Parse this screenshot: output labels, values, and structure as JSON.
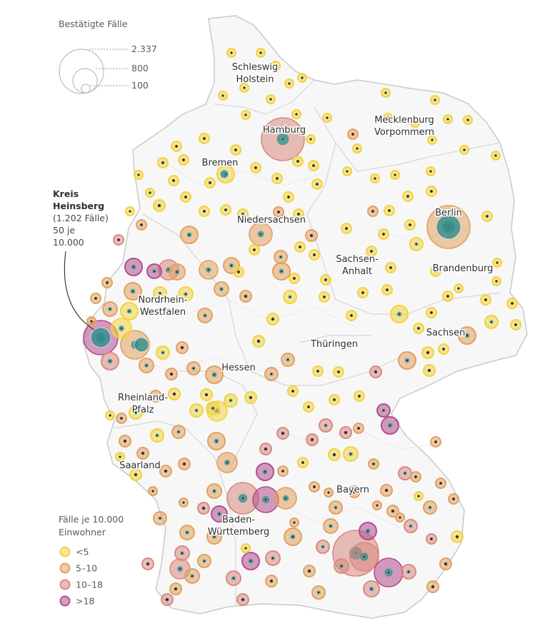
{
  "size_legend": {
    "title": "Bestätigte Fälle",
    "levels": [
      "2.337",
      "800",
      "100"
    ]
  },
  "rate_legend": {
    "title_line1": "Fälle je 10.000",
    "title_line2": "Einwohner",
    "classes": [
      {
        "label": "<5",
        "color": "#f2d43d"
      },
      {
        "label": "5–10",
        "color": "#e2a15e"
      },
      {
        "label": "10–18",
        "color": "#d98a80"
      },
      {
        "label": ">18",
        "color": "#b24e8e"
      }
    ],
    "center_color": "#2e8c8c"
  },
  "callout": {
    "title_line1": "Kreis",
    "title_line2": "Heinsberg",
    "text_line1": "(1.202 Fälle)",
    "text_line2": "50 je",
    "text_line3": "10.000"
  },
  "states": [
    {
      "id": "sh",
      "line1": "Schleswig",
      "line2": "Holstein"
    },
    {
      "id": "hh",
      "line1": "Hamburg"
    },
    {
      "id": "mv",
      "line1": "Mecklenburg",
      "line2": "Vorpommern"
    },
    {
      "id": "hb",
      "line1": "Bremen"
    },
    {
      "id": "ni",
      "line1": "Niedersachsen"
    },
    {
      "id": "be",
      "line1": "Berlin"
    },
    {
      "id": "st",
      "line1": "Sachsen-",
      "line2": "Anhalt"
    },
    {
      "id": "bb",
      "line1": "Brandenburg"
    },
    {
      "id": "nw",
      "line1": "Nordrhein-",
      "line2": "Westfalen"
    },
    {
      "id": "sn",
      "line1": "Sachsen"
    },
    {
      "id": "th",
      "line1": "Thüringen"
    },
    {
      "id": "he",
      "line1": "Hessen"
    },
    {
      "id": "rp",
      "line1": "Rheinland-",
      "line2": "Pfalz"
    },
    {
      "id": "sl",
      "line1": "Saarland"
    },
    {
      "id": "by",
      "line1": "Bayern"
    },
    {
      "id": "bw",
      "line1": "Baden-",
      "line2": "Württemberg"
    }
  ],
  "map_style": {
    "land_fill": "#f7f7f7",
    "border_color": "#c9c9c9",
    "district_color": "#dedede"
  }
}
